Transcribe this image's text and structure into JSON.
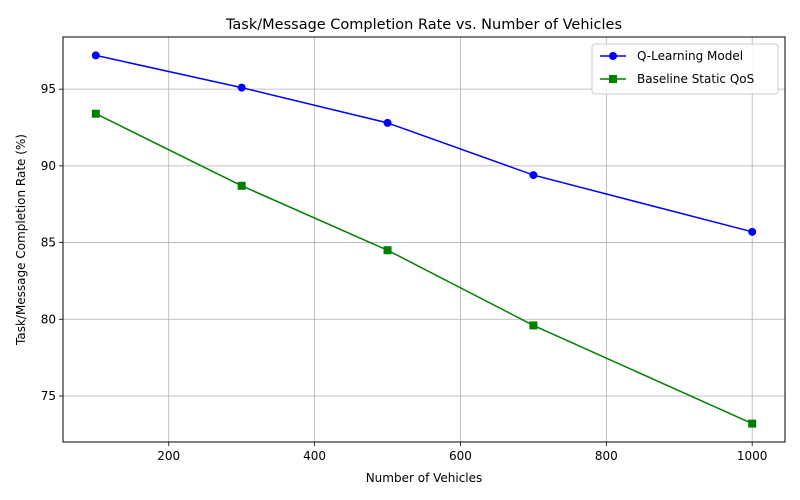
{
  "chart_data": {
    "type": "line",
    "title": "Task/Message Completion Rate vs. Number of Vehicles",
    "xlabel": "Number of Vehicles",
    "ylabel": "Task/Message Completion Rate (%)",
    "x": [
      100,
      300,
      500,
      700,
      1000
    ],
    "xlim": [
      55,
      1045
    ],
    "ylim": [
      72.0,
      98.4
    ],
    "xticks": [
      200,
      400,
      600,
      800,
      1000
    ],
    "yticks": [
      75,
      80,
      85,
      90,
      95
    ],
    "grid": true,
    "legend_position": "top-right",
    "series": [
      {
        "name": "Q-Learning Model",
        "values": [
          97.2,
          95.1,
          92.8,
          89.4,
          85.7
        ],
        "color": "#0000ff",
        "marker": "circle"
      },
      {
        "name": "Baseline Static QoS",
        "values": [
          93.4,
          88.7,
          84.5,
          79.6,
          73.2
        ],
        "color": "#008000",
        "marker": "square"
      }
    ]
  }
}
